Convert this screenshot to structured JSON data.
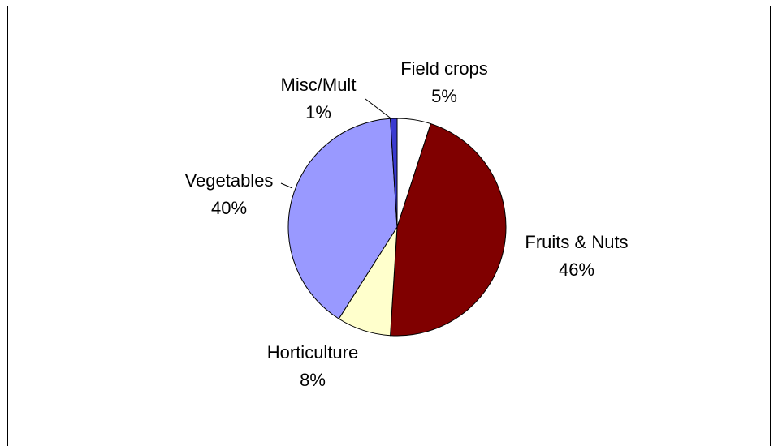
{
  "chart_data": {
    "type": "pie",
    "categories": [
      "Field crops",
      "Fruits & Nuts",
      "Horticulture",
      "Vegetables",
      "Misc/Mult"
    ],
    "values": [
      5,
      46,
      8,
      40,
      1
    ],
    "value_labels": [
      "5%",
      "46%",
      "8%",
      "40%",
      "1%"
    ],
    "colors": [
      "#ffffff",
      "#800000",
      "#ffffcc",
      "#9999ff",
      "#3a3ad0"
    ]
  }
}
